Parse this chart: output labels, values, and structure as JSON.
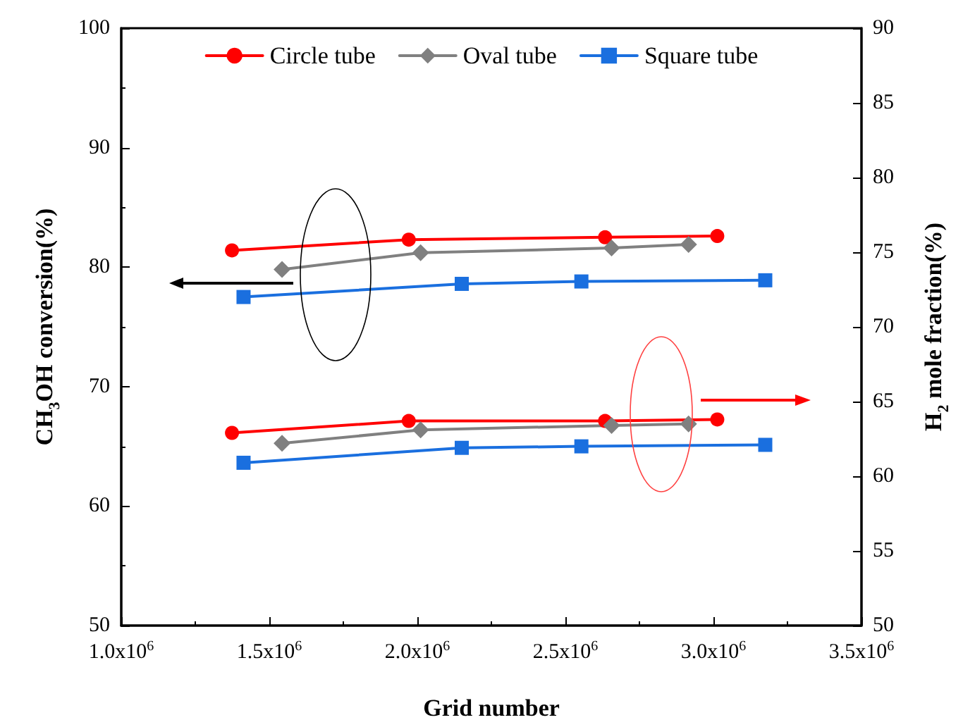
{
  "chart_data": {
    "type": "line",
    "xlabel": "Grid number",
    "ylabel": "CH$_{3}$OH conversion(%)",
    "y2label": "H$_{2}$ mole fraction(%)",
    "xlim": [
      1000000,
      3500000
    ],
    "xticks": [
      {
        "value": 1000000,
        "label": "1.0x10$^{6}$"
      },
      {
        "value": 1500000,
        "label": "1.5x10$^{6}$"
      },
      {
        "value": 2000000,
        "label": "2.0x10$^{6}$"
      },
      {
        "value": 2500000,
        "label": "2.5x10$^{6}$"
      },
      {
        "value": 3000000,
        "label": "3.0x10$^{6}$"
      },
      {
        "value": 3500000,
        "label": "3.5x10$^{6}$"
      }
    ],
    "ylim": [
      50,
      100
    ],
    "yticks": [
      50,
      60,
      70,
      80,
      90,
      100
    ],
    "y2lim": [
      50,
      90
    ],
    "y2ticks": [
      50,
      55,
      60,
      65,
      70,
      75,
      80,
      85,
      90
    ],
    "grid": false,
    "legend": "top",
    "line_style": "solid",
    "series": [
      {
        "name": "Circle tube",
        "color": "#ff0000",
        "marker": "circle",
        "x": [
          1374000,
          1971000,
          2634000,
          3013000
        ],
        "values": [
          81.4,
          82.3,
          82.5,
          82.6
        ]
      },
      {
        "name": "Oval tube",
        "color": "#808080",
        "marker": "diamond",
        "x": [
          1543000,
          2011000,
          2656000,
          2916000
        ],
        "values": [
          79.8,
          81.2,
          81.6,
          81.9
        ]
      },
      {
        "name": "Square tube",
        "color": "#1a6fdf",
        "marker": "square",
        "x": [
          1413000,
          2150000,
          2554000,
          3175000
        ],
        "values": [
          77.5,
          78.6,
          78.8,
          78.9
        ]
      },
      {
        "color": "#ff0000",
        "marker": "circle",
        "axis": "y2",
        "x": [
          1374000,
          1971000,
          2634000,
          3013000
        ],
        "values": [
          62.9,
          63.7,
          63.7,
          63.8
        ]
      },
      {
        "color": "#808080",
        "marker": "diamond",
        "axis": "y2",
        "x": [
          1543000,
          2011000,
          2656000,
          2916000
        ],
        "values": [
          62.2,
          63.1,
          63.4,
          63.5
        ]
      },
      {
        "color": "#1a6fdf",
        "marker": "square",
        "axis": "y2",
        "x": [
          1413000,
          2150000,
          2554000,
          3175000
        ],
        "values": [
          60.9,
          61.9,
          62.0,
          62.1
        ]
      }
    ]
  }
}
